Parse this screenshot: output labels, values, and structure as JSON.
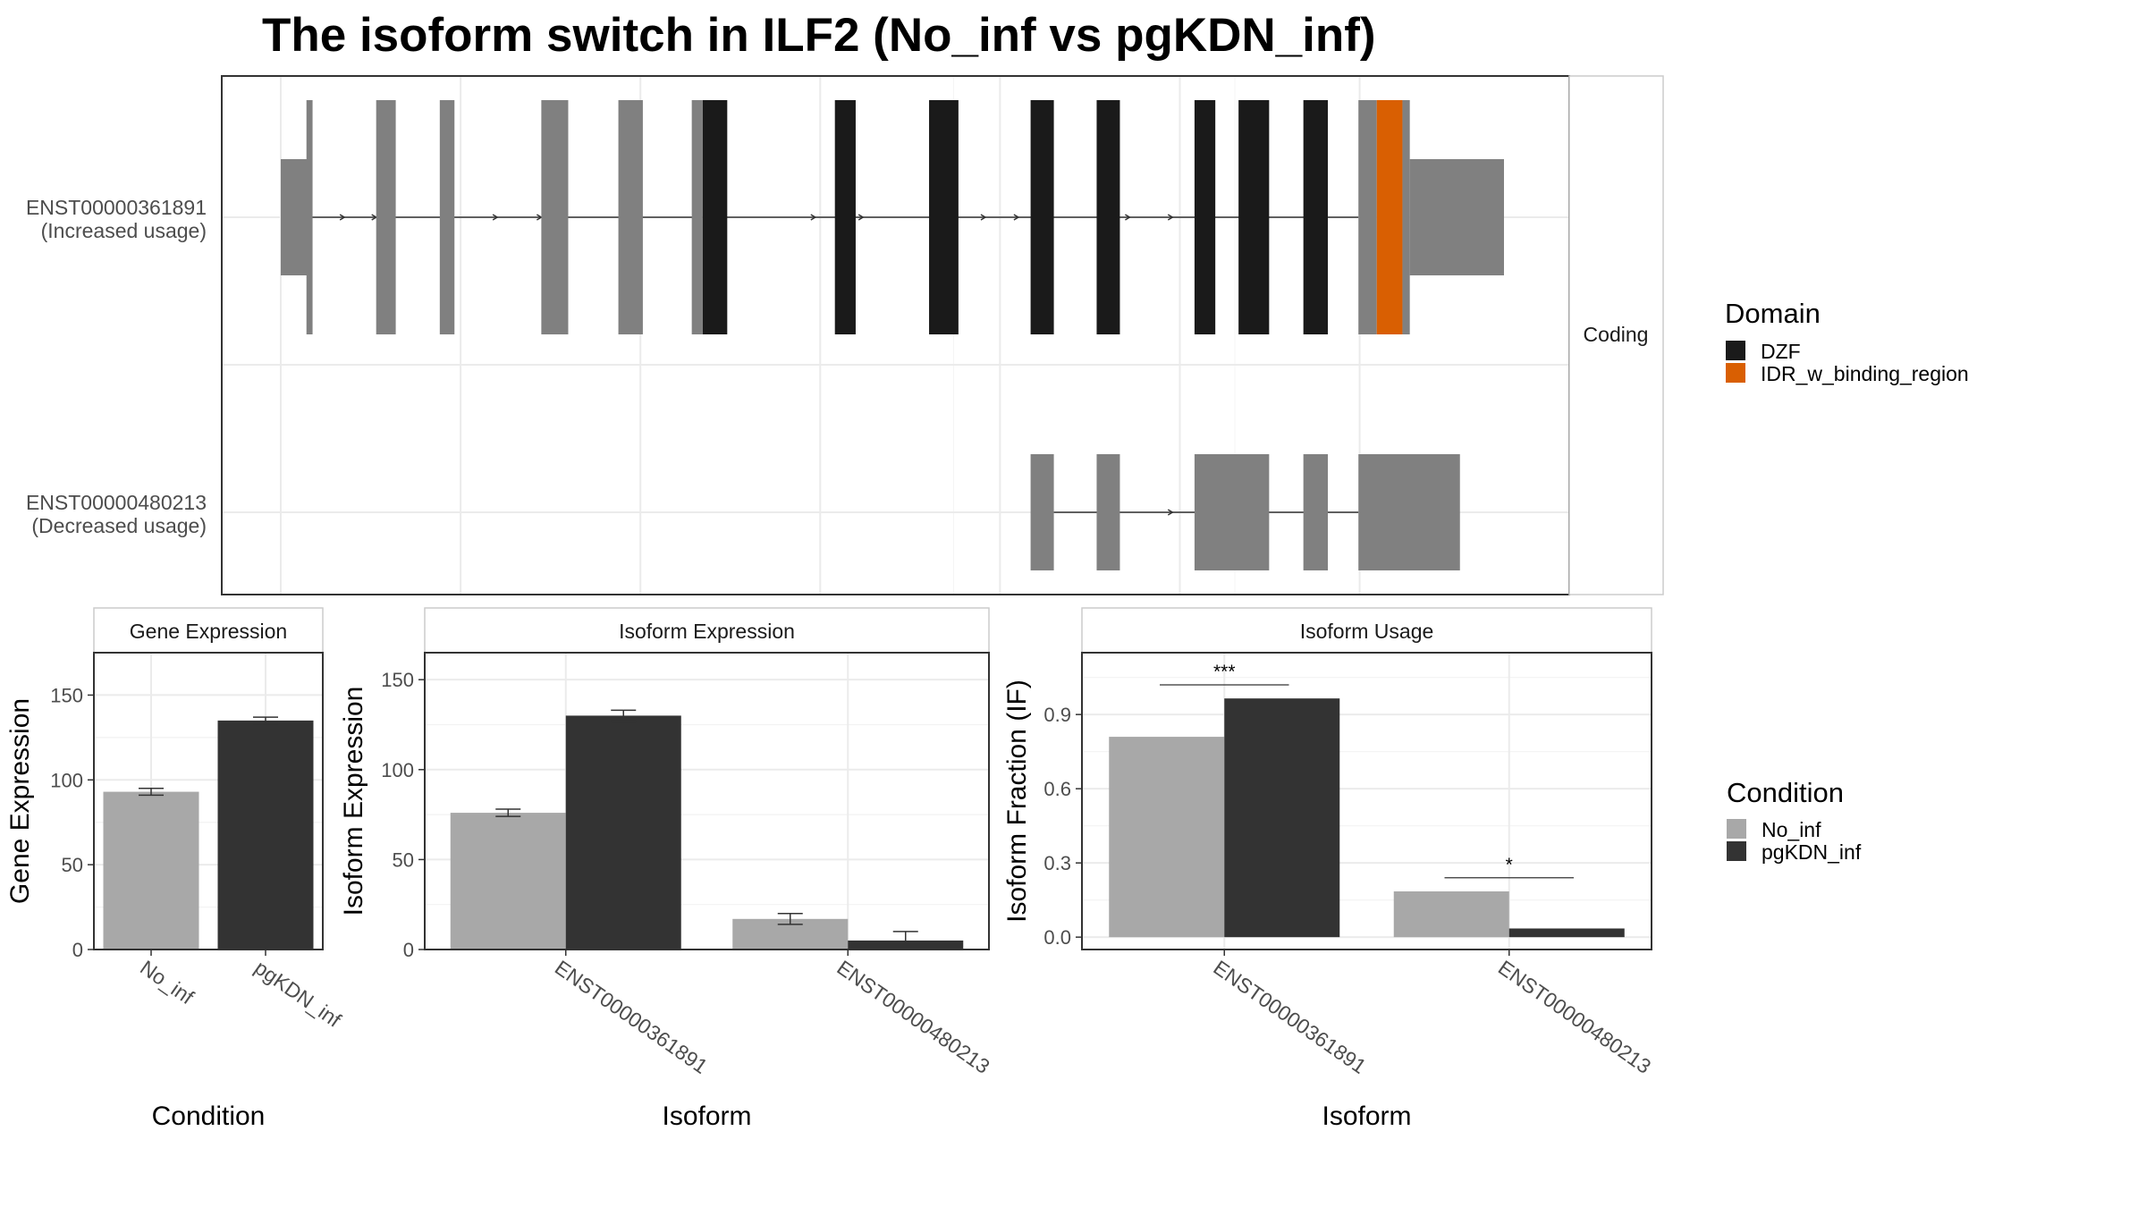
{
  "title": "The isoform switch in ILF2 (No_inf vs pgKDN_inf)",
  "colors": {
    "utr": "#808080",
    "dzf": "#1a1a1a",
    "idr": "#d95f02",
    "no_inf": "#a8a8a8",
    "pgkdn_inf": "#333333",
    "grid": "#ebebeb",
    "strip_bg": "#ffffff"
  },
  "legends": {
    "domain": {
      "title": "Domain",
      "items": [
        {
          "label": "DZF",
          "color": "#1a1a1a"
        },
        {
          "label": "IDR_w_binding_region",
          "color": "#d95f02"
        }
      ]
    },
    "condition": {
      "title": "Condition",
      "items": [
        {
          "label": "No_inf",
          "color": "#a8a8a8"
        },
        {
          "label": "pgKDN_inf",
          "color": "#333333"
        }
      ]
    }
  },
  "chart_data": [
    {
      "type": "gene-structure",
      "facet_label": "Coding",
      "xlim": [
        0,
        1
      ],
      "transcripts": [
        {
          "id": "ENST00000361891",
          "subtitle": "(Increased usage)",
          "intron": [
            0.023,
            0.881
          ],
          "arrows": [
            0.052,
            0.078,
            0.177,
            0.213,
            0.437,
            0.476,
            0.576,
            0.603,
            0.694,
            0.729
          ],
          "exons": [
            {
              "start": 0.0,
              "end": 0.023,
              "kind": "utr"
            },
            {
              "start": 0.021,
              "end": 0.026,
              "kind": "cds"
            },
            {
              "start": 0.078,
              "end": 0.094,
              "kind": "cds"
            },
            {
              "start": 0.13,
              "end": 0.142,
              "kind": "cds"
            },
            {
              "start": 0.213,
              "end": 0.235,
              "kind": "cds"
            },
            {
              "start": 0.276,
              "end": 0.296,
              "kind": "cds"
            },
            {
              "start": 0.336,
              "end": 0.345,
              "kind": "cds"
            },
            {
              "start": 0.345,
              "end": 0.365,
              "kind": "dzf"
            },
            {
              "start": 0.453,
              "end": 0.47,
              "kind": "dzf"
            },
            {
              "start": 0.53,
              "end": 0.554,
              "kind": "dzf"
            },
            {
              "start": 0.613,
              "end": 0.632,
              "kind": "dzf"
            },
            {
              "start": 0.667,
              "end": 0.686,
              "kind": "dzf"
            },
            {
              "start": 0.747,
              "end": 0.764,
              "kind": "dzf"
            },
            {
              "start": 0.783,
              "end": 0.808,
              "kind": "dzf"
            },
            {
              "start": 0.836,
              "end": 0.856,
              "kind": "dzf"
            },
            {
              "start": 0.881,
              "end": 0.896,
              "kind": "cds"
            },
            {
              "start": 0.896,
              "end": 0.917,
              "kind": "idr"
            },
            {
              "start": 0.917,
              "end": 0.923,
              "kind": "cds"
            },
            {
              "start": 0.923,
              "end": 1.0,
              "kind": "utr"
            }
          ]
        },
        {
          "id": "ENST00000480213",
          "subtitle": "(Decreased usage)",
          "intron": [
            0.632,
            0.881
          ],
          "arrows": [
            0.729,
            0.759
          ],
          "exons": [
            {
              "start": 0.613,
              "end": 0.632,
              "kind": "cds"
            },
            {
              "start": 0.667,
              "end": 0.686,
              "kind": "cds"
            },
            {
              "start": 0.747,
              "end": 0.808,
              "kind": "cds"
            },
            {
              "start": 0.836,
              "end": 0.856,
              "kind": "cds"
            },
            {
              "start": 0.881,
              "end": 0.964,
              "kind": "cds"
            }
          ]
        }
      ]
    },
    {
      "type": "bar",
      "title": "Gene Expression",
      "xlabel": "Condition",
      "ylabel": "Gene Expression",
      "ylim": [
        0,
        175
      ],
      "yticks": [
        0,
        50,
        100,
        150
      ],
      "categories": [
        "No_inf",
        "pgKDN_inf"
      ],
      "series": [
        {
          "name": "No_inf",
          "values": [
            93,
            null
          ],
          "err": [
            2,
            null
          ]
        },
        {
          "name": "pgKDN_inf",
          "values": [
            null,
            135
          ],
          "err": [
            null,
            2
          ]
        }
      ]
    },
    {
      "type": "bar",
      "title": "Isoform Expression",
      "xlabel": "Isoform",
      "ylabel": "Isoform Expression",
      "ylim": [
        0,
        165
      ],
      "yticks": [
        0,
        50,
        100,
        150
      ],
      "categories": [
        "ENST00000361891",
        "ENST00000480213"
      ],
      "series": [
        {
          "name": "No_inf",
          "values": [
            76,
            17
          ],
          "err": [
            2,
            3
          ]
        },
        {
          "name": "pgKDN_inf",
          "values": [
            130,
            5
          ],
          "err": [
            3,
            5
          ]
        }
      ]
    },
    {
      "type": "bar",
      "title": "Isoform Usage",
      "xlabel": "Isoform",
      "ylabel": "Isoform Fraction (IF)",
      "ylim": [
        -0.05,
        1.15
      ],
      "yticks": [
        0.0,
        0.3,
        0.6,
        0.9
      ],
      "ytick_labels": [
        "0.0",
        "0.3",
        "0.6",
        "0.9"
      ],
      "categories": [
        "ENST00000361891",
        "ENST00000480213"
      ],
      "series": [
        {
          "name": "No_inf",
          "values": [
            0.81,
            0.185
          ]
        },
        {
          "name": "pgKDN_inf",
          "values": [
            0.965,
            0.035
          ]
        }
      ],
      "significance": [
        {
          "category": "ENST00000361891",
          "label": "***",
          "y": 1.02
        },
        {
          "category": "ENST00000480213",
          "label": "*",
          "y": 0.24
        }
      ]
    }
  ]
}
